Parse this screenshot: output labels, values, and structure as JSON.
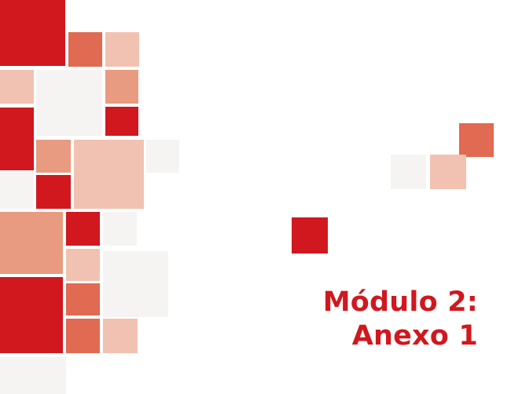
{
  "title": {
    "line1": "Módulo 2:",
    "line2": "Anexo 1"
  },
  "palette": {
    "deep_red": "#d0181e",
    "coral": "#e06a52",
    "salmon": "#e89b80",
    "light_peach": "#f1c2b1",
    "pale_grey": "#f5f4f3"
  }
}
